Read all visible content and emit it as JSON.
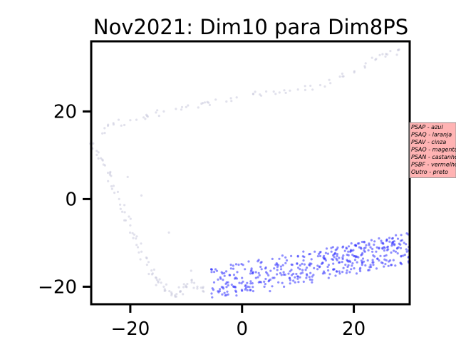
{
  "chart_data": {
    "type": "scatter",
    "title": "Nov2021: Dim10 para Dim8PS",
    "xlabel": "",
    "ylabel": "",
    "xlim": [
      -27,
      30
    ],
    "ylim": [
      -24,
      36
    ],
    "xticks": [
      -20,
      0,
      20
    ],
    "yticks": [
      -20,
      0,
      20
    ],
    "x_tick_labels": [
      "−20",
      "0",
      "20"
    ],
    "y_tick_labels": [
      "−20",
      "0",
      "20"
    ],
    "grid": false,
    "legend": {
      "placement": "right",
      "background": "#ffb3b3",
      "entries": [
        "PSAP - azul",
        "PSAQ - laranja",
        "PSAV - cinza",
        "PSAO - magenta",
        "PSAN - castanho",
        "PSBF - vermelho",
        "Outro - preto"
      ]
    },
    "series": [
      {
        "color": "#3333ff",
        "opacity": 0.55,
        "points": [
          [
            -5.5,
            -16
          ],
          [
            -5,
            -19
          ],
          [
            -4,
            -21
          ],
          [
            -3.5,
            -17
          ],
          [
            -3,
            -22
          ],
          [
            -2.5,
            -19
          ],
          [
            -2,
            -15
          ],
          [
            -1.5,
            -20
          ],
          [
            -1,
            -22
          ],
          [
            0,
            -18
          ],
          [
            0.5,
            -16
          ],
          [
            1,
            -20
          ],
          [
            1.5,
            -17
          ],
          [
            2,
            -21
          ],
          [
            2.5,
            -18
          ],
          [
            3,
            -19
          ],
          [
            3.5,
            -16
          ],
          [
            4,
            -20
          ],
          [
            4.5,
            -17
          ],
          [
            5,
            -21
          ],
          [
            5.5,
            -18
          ],
          [
            6,
            -15
          ],
          [
            6.5,
            -19
          ],
          [
            7,
            -16
          ],
          [
            7.5,
            -20
          ],
          [
            8,
            -14
          ],
          [
            8.5,
            -18
          ],
          [
            9,
            -15
          ],
          [
            9.5,
            -19
          ],
          [
            10,
            -13
          ],
          [
            10.5,
            -17
          ],
          [
            11,
            -14
          ],
          [
            11.5,
            -18
          ],
          [
            12,
            -15
          ],
          [
            12.5,
            -19
          ],
          [
            13,
            -12
          ],
          [
            13.5,
            -16
          ],
          [
            14,
            -13
          ],
          [
            14.5,
            -17
          ],
          [
            15,
            -14
          ],
          [
            15.5,
            -18
          ],
          [
            16,
            -12
          ],
          [
            16.5,
            -16
          ],
          [
            17,
            -13
          ],
          [
            17.5,
            -17
          ],
          [
            18,
            -11
          ],
          [
            18.5,
            -15
          ],
          [
            19,
            -12
          ],
          [
            19.5,
            -16
          ],
          [
            20,
            -13
          ],
          [
            20.5,
            -17
          ],
          [
            21,
            -11
          ],
          [
            21.5,
            -15
          ],
          [
            22,
            -12
          ],
          [
            22.5,
            -14
          ],
          [
            23,
            -11
          ],
          [
            23.5,
            -15
          ],
          [
            24,
            -12
          ],
          [
            24.5,
            -14
          ],
          [
            25,
            -10
          ],
          [
            25.5,
            -13
          ],
          [
            26,
            -11
          ],
          [
            26.5,
            -14
          ],
          [
            27,
            -10
          ],
          [
            27.5,
            -12
          ],
          [
            28,
            -11
          ],
          [
            28.5,
            -13
          ],
          [
            29,
            -10
          ],
          [
            29.5,
            -12
          ],
          [
            30,
            -11
          ]
        ],
        "fill_x_range": [
          -5.5,
          30
        ],
        "fill_count": 380
      },
      {
        "color": "#c8c8dc",
        "opacity": 0.55,
        "points": [
          [
            -27,
            13
          ],
          [
            -26,
            11
          ],
          [
            -25,
            9
          ],
          [
            -24,
            6
          ],
          [
            -23,
            3
          ],
          [
            -22,
            0
          ],
          [
            -21,
            -3
          ],
          [
            -20,
            -6
          ],
          [
            -19,
            -9
          ],
          [
            -18,
            -12
          ],
          [
            -17,
            -15
          ],
          [
            -16,
            -17
          ],
          [
            -15,
            -19
          ],
          [
            -14,
            -20
          ],
          [
            -13,
            -21
          ],
          [
            -12,
            -22
          ],
          [
            -11,
            -21
          ],
          [
            -10,
            -20
          ],
          [
            -9,
            -19
          ],
          [
            -8,
            -20
          ],
          [
            -7,
            -21
          ],
          [
            -25,
            15
          ],
          [
            -23,
            17
          ],
          [
            -20,
            18
          ],
          [
            -17,
            19
          ],
          [
            -14,
            20
          ],
          [
            -10,
            21
          ],
          [
            -6,
            22
          ],
          [
            -2,
            23
          ],
          [
            2,
            24
          ],
          [
            6,
            24
          ],
          [
            10,
            25
          ],
          [
            14,
            26
          ],
          [
            18,
            28
          ],
          [
            22,
            30
          ],
          [
            24,
            32
          ],
          [
            26,
            33
          ],
          [
            28,
            34
          ]
        ]
      }
    ]
  }
}
